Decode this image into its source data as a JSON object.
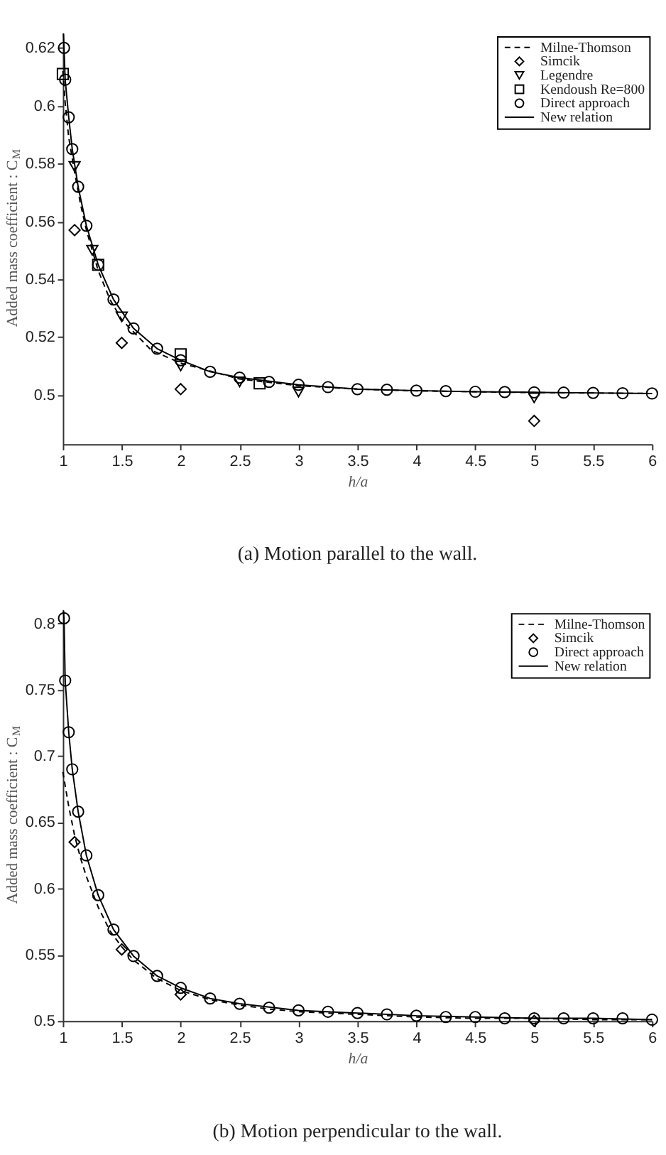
{
  "chart_data": [
    {
      "type": "line",
      "xlabel": "h/a",
      "ylabel": "Added mass coefficient : C$_{M}$",
      "xlim": [
        1,
        6
      ],
      "xticks": [
        1,
        1.5,
        2,
        2.5,
        3,
        3.5,
        4,
        4.5,
        5,
        5.5,
        6
      ],
      "ylim": [
        0.483,
        0.625
      ],
      "yticks": [
        0.5,
        0.52,
        0.54,
        0.56,
        0.58,
        0.6,
        0.62
      ],
      "legend": "top right",
      "annotations": [
        "(a) Motion parallel to the wall."
      ],
      "series": [
        {
          "name": "Milne-Thomson",
          "line_style": "dashed",
          "color": "#000000",
          "x": [
            1.0,
            1.02,
            1.05,
            1.1,
            1.15,
            1.2,
            1.3,
            1.4,
            1.5,
            1.75,
            2,
            2.5,
            3,
            3.5,
            4,
            5,
            6
          ],
          "values": [
            0.612,
            0.601,
            0.589,
            0.577,
            0.566,
            0.557,
            0.543,
            0.533,
            0.526,
            0.5155,
            0.511,
            0.5055,
            0.5032,
            0.502,
            0.5014,
            0.5008,
            0.5005
          ]
        },
        {
          "name": "Simcik",
          "type": "scatter",
          "marker": "diamond",
          "color": "#000000",
          "x": [
            1.1,
            1.5,
            2,
            5
          ],
          "values": [
            0.557,
            0.518,
            0.502,
            0.491
          ]
        },
        {
          "name": "Legendre",
          "type": "scatter",
          "marker": "triangle",
          "color": "#000000",
          "x": [
            1.1,
            1.25,
            1.5,
            2,
            2.5,
            3,
            5
          ],
          "values": [
            0.579,
            0.55,
            0.527,
            0.51,
            0.5045,
            0.501,
            0.499
          ]
        },
        {
          "name": "Kendoush Re=800",
          "type": "scatter",
          "marker": "square",
          "color": "#000000",
          "x": [
            1.0,
            1.3,
            2,
            2.67
          ],
          "values": [
            0.611,
            0.545,
            0.514,
            0.504
          ]
        },
        {
          "name": "Direct approach",
          "type": "scatter",
          "marker": "circle",
          "color": "#000000",
          "x": [
            1.01,
            1.02,
            1.05,
            1.08,
            1.13,
            1.2,
            1.3,
            1.43,
            1.6,
            1.8,
            2,
            2.25,
            2.5,
            2.75,
            3,
            3.25,
            3.5,
            3.75,
            4,
            4.25,
            4.5,
            4.75,
            5,
            5.25,
            5.5,
            5.75,
            6
          ],
          "values": [
            0.62,
            0.609,
            0.596,
            0.585,
            0.572,
            0.5585,
            0.545,
            0.533,
            0.523,
            0.516,
            0.512,
            0.508,
            0.506,
            0.5045,
            0.5035,
            0.5027,
            0.502,
            0.5018,
            0.5015,
            0.5013,
            0.5011,
            0.501,
            0.5009,
            0.5008,
            0.5007,
            0.5006,
            0.5005
          ]
        },
        {
          "name": "New relation",
          "line_style": "solid",
          "color": "#000000",
          "x": [
            1.005,
            1.01,
            1.02,
            1.05,
            1.08,
            1.13,
            1.2,
            1.3,
            1.43,
            1.6,
            1.8,
            2,
            2.25,
            2.5,
            3,
            3.5,
            4,
            4.5,
            5,
            5.5,
            6
          ],
          "values": [
            0.625,
            0.62,
            0.609,
            0.596,
            0.585,
            0.572,
            0.5585,
            0.545,
            0.533,
            0.523,
            0.516,
            0.512,
            0.508,
            0.506,
            0.5035,
            0.502,
            0.5015,
            0.5011,
            0.5009,
            0.5007,
            0.5005
          ]
        }
      ]
    },
    {
      "type": "line",
      "xlabel": "h/a",
      "ylabel": "Added mass coefficient : C$_{M}$",
      "xlim": [
        1,
        6
      ],
      "xticks": [
        1,
        1.5,
        2,
        2.5,
        3,
        3.5,
        4,
        4.5,
        5,
        5.5,
        6
      ],
      "ylim": [
        0.5,
        0.81
      ],
      "yticks": [
        0.5,
        0.55,
        0.6,
        0.65,
        0.7,
        0.75,
        0.8
      ],
      "legend": "top right",
      "annotations": [
        "(b) Motion perpendicular to the wall."
      ],
      "series": [
        {
          "name": "Milne-Thomson",
          "line_style": "dashed",
          "color": "#000000",
          "x": [
            1.0,
            1.05,
            1.1,
            1.15,
            1.2,
            1.3,
            1.4,
            1.5,
            1.6,
            1.8,
            2,
            2.25,
            2.5,
            2.75,
            3,
            3.5,
            4,
            4.5,
            5,
            5.5,
            6
          ],
          "values": [
            0.688,
            0.662,
            0.64,
            0.623,
            0.609,
            0.586,
            0.568,
            0.556,
            0.546,
            0.532,
            0.523,
            0.516,
            0.512,
            0.509,
            0.507,
            0.505,
            0.503,
            0.502,
            0.502,
            0.501,
            0.501
          ]
        },
        {
          "name": "Simcik",
          "type": "scatter",
          "marker": "diamond",
          "color": "#000000",
          "x": [
            1.1,
            1.5,
            2,
            5
          ],
          "values": [
            0.635,
            0.554,
            0.52,
            0.5
          ]
        },
        {
          "name": "Direct approach",
          "type": "scatter",
          "marker": "circle",
          "color": "#000000",
          "x": [
            1.01,
            1.02,
            1.05,
            1.08,
            1.13,
            1.2,
            1.3,
            1.43,
            1.6,
            1.8,
            2,
            2.25,
            2.5,
            2.75,
            3,
            3.25,
            3.5,
            3.75,
            4,
            4.25,
            4.5,
            4.75,
            5,
            5.25,
            5.5,
            5.75,
            6
          ],
          "values": [
            0.804,
            0.757,
            0.718,
            0.69,
            0.658,
            0.625,
            0.595,
            0.569,
            0.549,
            0.534,
            0.525,
            0.517,
            0.513,
            0.51,
            0.508,
            0.507,
            0.506,
            0.505,
            0.504,
            0.503,
            0.503,
            0.502,
            0.502,
            0.502,
            0.502,
            0.502,
            0.501
          ]
        },
        {
          "name": "New relation",
          "line_style": "solid",
          "color": "#000000",
          "x": [
            1.005,
            1.01,
            1.02,
            1.05,
            1.08,
            1.13,
            1.2,
            1.3,
            1.43,
            1.6,
            1.8,
            2,
            2.25,
            2.5,
            3,
            3.5,
            4,
            4.5,
            5,
            5.5,
            6
          ],
          "values": [
            0.81,
            0.804,
            0.757,
            0.718,
            0.69,
            0.658,
            0.625,
            0.595,
            0.569,
            0.549,
            0.534,
            0.525,
            0.517,
            0.513,
            0.508,
            0.506,
            0.504,
            0.503,
            0.502,
            0.502,
            0.501
          ]
        }
      ]
    }
  ]
}
